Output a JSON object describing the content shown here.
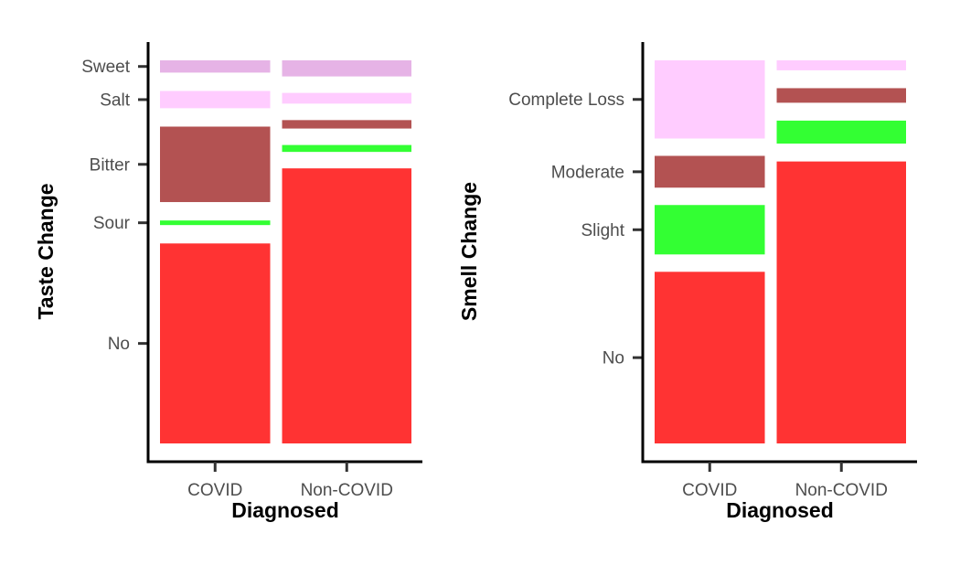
{
  "chart_data": [
    {
      "type": "mosaic",
      "xlabel": "Diagnosed",
      "ylabel": "Taste Change",
      "categories": [
        "COVID",
        "Non-COVID"
      ],
      "column_weights": [
        0.46,
        0.54
      ],
      "levels": [
        "No",
        "Sour",
        "Bitter",
        "Salt",
        "Sweet"
      ],
      "level_colors": [
        "#ff3333",
        "#33ff33",
        "#b35252",
        "#ffccff",
        "#e6b3e6"
      ],
      "series": [
        {
          "name": "COVID",
          "proportions": [
            0.522,
            0.012,
            0.197,
            0.045,
            0.032
          ]
        },
        {
          "name": "Non-COVID",
          "proportions": [
            0.718,
            0.018,
            0.022,
            0.028,
            0.042
          ]
        }
      ]
    },
    {
      "type": "mosaic",
      "xlabel": "Diagnosed",
      "ylabel": "Smell Change",
      "categories": [
        "COVID",
        "Non-COVID"
      ],
      "column_weights": [
        0.46,
        0.54
      ],
      "levels": [
        "No",
        "Slight",
        "Moderate",
        "Complete Loss"
      ],
      "level_colors": [
        "#ff3333",
        "#33ff33",
        "#b35252",
        "#ffccff"
      ],
      "series": [
        {
          "name": "COVID",
          "proportions": [
            0.448,
            0.129,
            0.083,
            0.204
          ]
        },
        {
          "name": "Non-COVID",
          "proportions": [
            0.736,
            0.06,
            0.038,
            0.026
          ]
        }
      ]
    }
  ]
}
